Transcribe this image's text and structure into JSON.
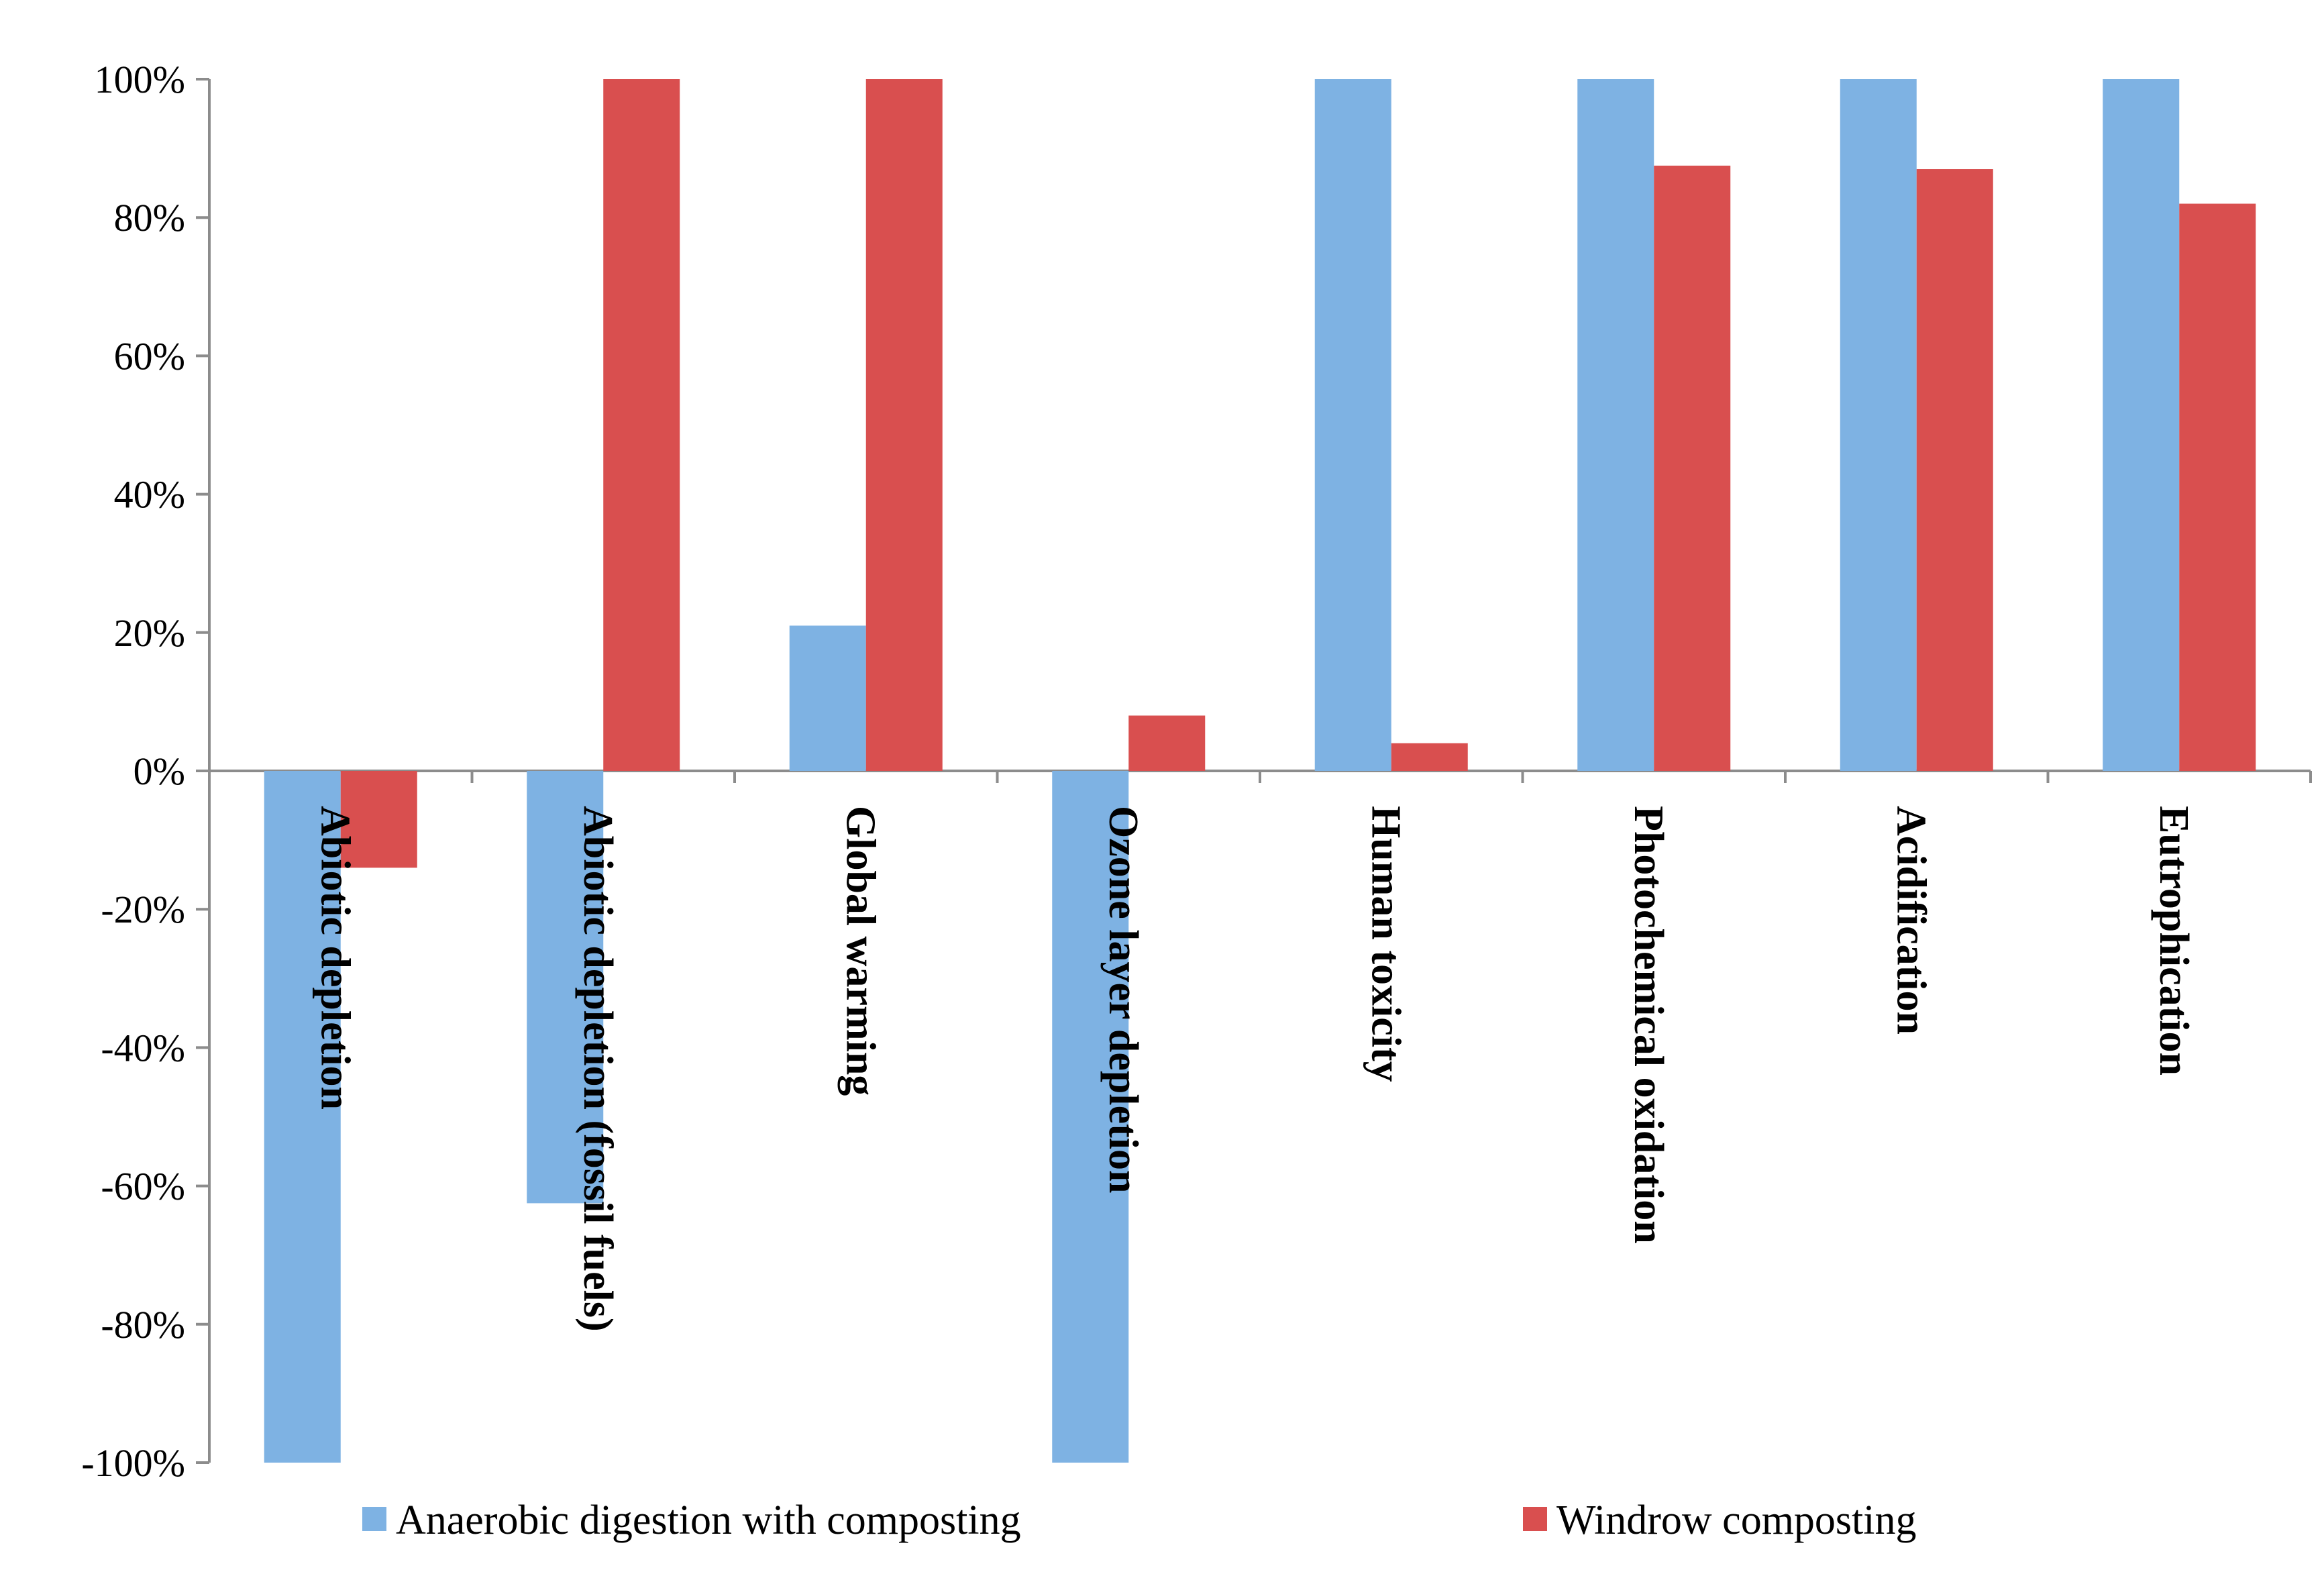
{
  "chart_data": {
    "type": "bar",
    "title": "",
    "xlabel": "",
    "ylabel": "",
    "ylim": [
      -100,
      100
    ],
    "y_ticks": [
      100,
      80,
      60,
      40,
      20,
      0,
      -20,
      -40,
      -60,
      -80,
      -100
    ],
    "y_tick_labels": [
      "100%",
      "80%",
      "60%",
      "40%",
      "20%",
      "0%",
      "-20%",
      "-40%",
      "-60%",
      "-80%",
      "-100%"
    ],
    "grid": false,
    "legend_position": "bottom",
    "categories": [
      "Abiotic depletion",
      "Abiotic depletion (fossil fuels)",
      "Global warming",
      "Ozone layer depletion",
      "Human toxicity",
      "Photochemical oxidation",
      "Acidification",
      "Eutrophication"
    ],
    "series": [
      {
        "name": "Anaerobic digestion with composting",
        "color": "#7eb2e3",
        "values": [
          -100,
          -62.5,
          21,
          -100,
          100,
          100,
          100,
          100
        ]
      },
      {
        "name": "Windrow composting",
        "color": "#d94f4f",
        "values": [
          -14,
          100,
          100,
          8,
          4,
          87.5,
          87,
          82
        ]
      }
    ]
  }
}
